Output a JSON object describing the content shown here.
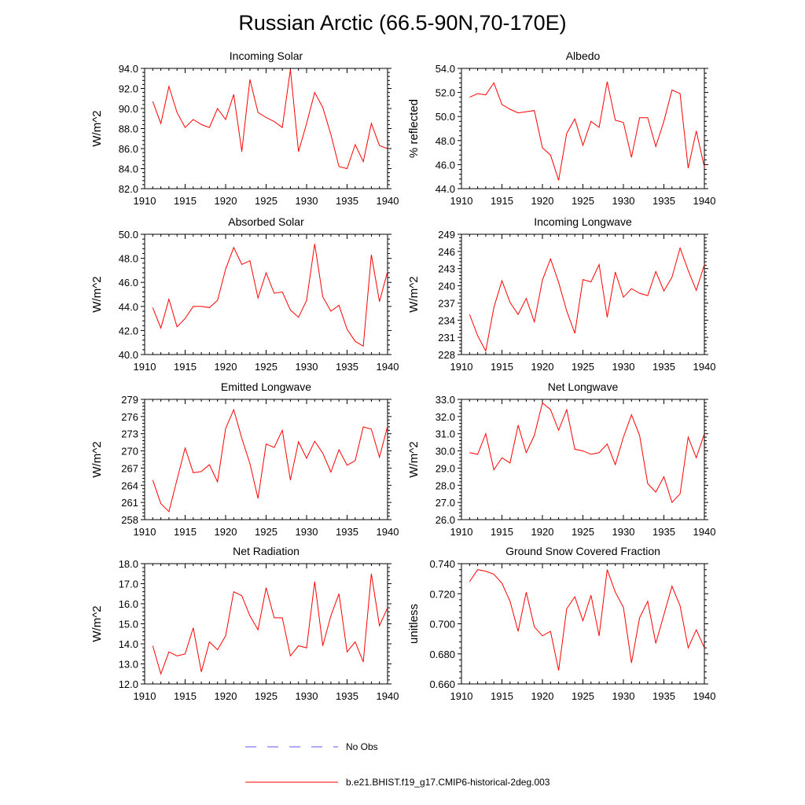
{
  "title": "Russian Arctic (66.5-90N,70-170E)",
  "legend": {
    "position": "bottom",
    "entries": [
      {
        "label": "No Obs",
        "color": "#5a5aff",
        "style": "dashed"
      },
      {
        "label": "b.e21.BHIST.f19_g17.CMIP6-historical-2deg.003",
        "color": "#ff0000",
        "style": "solid"
      }
    ]
  },
  "chart_data": [
    {
      "type": "line",
      "title": "Incoming Solar",
      "ylabel": "W/m^2",
      "xlabel": "",
      "xlim": [
        1910,
        1940
      ],
      "ylim": [
        82.0,
        94.0
      ],
      "xticks": [
        1910,
        1915,
        1920,
        1925,
        1930,
        1935,
        1940
      ],
      "yticks": [
        82.0,
        84.0,
        86.0,
        88.0,
        90.0,
        92.0,
        94.0
      ],
      "decimals": 1,
      "series": [
        {
          "color": "#ff0000",
          "x": [
            1911,
            1912,
            1913,
            1914,
            1915,
            1916,
            1917,
            1918,
            1919,
            1920,
            1921,
            1922,
            1923,
            1924,
            1925,
            1926,
            1927,
            1928,
            1929,
            1930,
            1931,
            1932,
            1933,
            1934,
            1935,
            1936,
            1937,
            1938,
            1939,
            1940
          ],
          "y": [
            90.7,
            88.5,
            92.2,
            89.6,
            88.1,
            88.9,
            88.4,
            88.1,
            90.0,
            88.9,
            91.4,
            85.7,
            92.9,
            89.6,
            89.1,
            88.7,
            88.1,
            93.9,
            85.7,
            88.5,
            91.6,
            90.1,
            87.4,
            84.2,
            84.0,
            86.4,
            84.7,
            88.5,
            86.3,
            86.0
          ]
        }
      ]
    },
    {
      "type": "line",
      "title": "Albedo",
      "ylabel": "% reflected",
      "xlabel": "",
      "xlim": [
        1910,
        1940
      ],
      "ylim": [
        44.0,
        54.0
      ],
      "xticks": [
        1910,
        1915,
        1920,
        1925,
        1930,
        1935,
        1940
      ],
      "yticks": [
        44.0,
        46.0,
        48.0,
        50.0,
        52.0,
        54.0
      ],
      "decimals": 1,
      "series": [
        {
          "color": "#ff0000",
          "x": [
            1911,
            1912,
            1913,
            1914,
            1915,
            1916,
            1917,
            1918,
            1919,
            1920,
            1921,
            1922,
            1923,
            1924,
            1925,
            1926,
            1927,
            1928,
            1929,
            1930,
            1931,
            1932,
            1933,
            1934,
            1935,
            1936,
            1937,
            1938,
            1939,
            1940
          ],
          "y": [
            51.6,
            51.9,
            51.8,
            52.8,
            51.0,
            50.6,
            50.3,
            50.4,
            50.5,
            47.4,
            46.8,
            44.7,
            48.6,
            49.8,
            47.6,
            49.6,
            49.1,
            52.9,
            49.7,
            49.5,
            46.6,
            49.9,
            49.9,
            47.5,
            49.6,
            52.2,
            51.9,
            45.7,
            48.8,
            45.8
          ]
        }
      ]
    },
    {
      "type": "line",
      "title": "Absorbed Solar",
      "ylabel": "W/m^2",
      "xlabel": "",
      "xlim": [
        1910,
        1940
      ],
      "ylim": [
        40.0,
        50.0
      ],
      "xticks": [
        1910,
        1915,
        1920,
        1925,
        1930,
        1935,
        1940
      ],
      "yticks": [
        40.0,
        42.0,
        44.0,
        46.0,
        48.0,
        50.0
      ],
      "decimals": 1,
      "series": [
        {
          "color": "#ff0000",
          "x": [
            1911,
            1912,
            1913,
            1914,
            1915,
            1916,
            1917,
            1918,
            1919,
            1920,
            1921,
            1922,
            1923,
            1924,
            1925,
            1926,
            1927,
            1928,
            1929,
            1930,
            1931,
            1932,
            1933,
            1934,
            1935,
            1936,
            1937,
            1938,
            1939,
            1940
          ],
          "y": [
            43.9,
            42.2,
            44.6,
            42.3,
            43.0,
            44.0,
            44.0,
            43.9,
            44.5,
            47.1,
            48.9,
            47.5,
            47.8,
            44.7,
            46.8,
            45.1,
            45.2,
            43.7,
            43.1,
            44.5,
            49.2,
            44.8,
            43.6,
            44.1,
            42.1,
            41.1,
            40.7,
            48.3,
            44.4,
            46.9
          ]
        }
      ]
    },
    {
      "type": "line",
      "title": "Incoming Longwave",
      "ylabel": "W/m^2",
      "xlabel": "",
      "xlim": [
        1910,
        1940
      ],
      "ylim": [
        228,
        249
      ],
      "xticks": [
        1910,
        1915,
        1920,
        1925,
        1930,
        1935,
        1940
      ],
      "yticks": [
        228,
        231,
        234,
        237,
        240,
        243,
        246,
        249
      ],
      "decimals": 0,
      "series": [
        {
          "color": "#ff0000",
          "x": [
            1911,
            1912,
            1913,
            1914,
            1915,
            1916,
            1917,
            1918,
            1919,
            1920,
            1921,
            1922,
            1923,
            1924,
            1925,
            1926,
            1927,
            1928,
            1929,
            1930,
            1931,
            1932,
            1933,
            1934,
            1935,
            1936,
            1937,
            1938,
            1939,
            1940
          ],
          "y": [
            235.0,
            231.3,
            228.6,
            236.2,
            240.9,
            237.1,
            235.0,
            237.8,
            233.7,
            241.0,
            244.7,
            240.6,
            235.6,
            231.7,
            241.1,
            240.7,
            243.7,
            234.5,
            242.4,
            238.0,
            239.5,
            238.7,
            238.3,
            242.5,
            239.1,
            241.5,
            246.6,
            242.7,
            239.2,
            243.7
          ]
        }
      ]
    },
    {
      "type": "line",
      "title": "Emitted Longwave",
      "ylabel": "W/m^2",
      "xlabel": "",
      "xlim": [
        1910,
        1940
      ],
      "ylim": [
        258,
        279
      ],
      "xticks": [
        1910,
        1915,
        1920,
        1925,
        1930,
        1935,
        1940
      ],
      "yticks": [
        258,
        261,
        264,
        267,
        270,
        273,
        276,
        279
      ],
      "decimals": 0,
      "series": [
        {
          "color": "#ff0000",
          "x": [
            1911,
            1912,
            1913,
            1914,
            1915,
            1916,
            1917,
            1918,
            1919,
            1920,
            1921,
            1922,
            1923,
            1924,
            1925,
            1926,
            1927,
            1928,
            1929,
            1930,
            1931,
            1932,
            1933,
            1934,
            1935,
            1936,
            1937,
            1938,
            1939,
            1940
          ],
          "y": [
            264.9,
            260.8,
            259.4,
            265.0,
            270.5,
            266.2,
            266.4,
            267.6,
            264.6,
            273.9,
            277.2,
            272.2,
            267.8,
            261.7,
            271.2,
            270.6,
            273.6,
            264.9,
            271.6,
            268.7,
            271.7,
            269.6,
            266.3,
            270.2,
            267.5,
            268.3,
            274.2,
            273.8,
            268.9,
            274.3
          ]
        }
      ]
    },
    {
      "type": "line",
      "title": "Net Longwave",
      "ylabel": "W/m^2",
      "xlabel": "",
      "xlim": [
        1910,
        1940
      ],
      "ylim": [
        26.0,
        33.0
      ],
      "xticks": [
        1910,
        1915,
        1920,
        1925,
        1930,
        1935,
        1940
      ],
      "yticks": [
        26.0,
        27.0,
        28.0,
        29.0,
        30.0,
        31.0,
        32.0,
        33.0
      ],
      "decimals": 1,
      "series": [
        {
          "color": "#ff0000",
          "x": [
            1911,
            1912,
            1913,
            1914,
            1915,
            1916,
            1917,
            1918,
            1919,
            1920,
            1921,
            1922,
            1923,
            1924,
            1925,
            1926,
            1927,
            1928,
            1929,
            1930,
            1931,
            1932,
            1933,
            1934,
            1935,
            1936,
            1937,
            1938,
            1939,
            1940
          ],
          "y": [
            29.9,
            29.8,
            31.0,
            28.9,
            29.6,
            29.3,
            31.5,
            29.9,
            30.9,
            32.8,
            32.4,
            31.2,
            32.4,
            30.1,
            30.0,
            29.8,
            29.9,
            30.4,
            29.2,
            30.8,
            32.1,
            30.9,
            28.1,
            27.6,
            28.5,
            27.0,
            27.5,
            30.8,
            29.6,
            31.0
          ]
        }
      ]
    },
    {
      "type": "line",
      "title": "Net Radiation",
      "ylabel": "W/m^2",
      "xlabel": "",
      "xlim": [
        1910,
        1940
      ],
      "ylim": [
        12.0,
        18.0
      ],
      "xticks": [
        1910,
        1915,
        1920,
        1925,
        1930,
        1935,
        1940
      ],
      "yticks": [
        12.0,
        13.0,
        14.0,
        15.0,
        16.0,
        17.0,
        18.0
      ],
      "decimals": 1,
      "series": [
        {
          "color": "#ff0000",
          "x": [
            1911,
            1912,
            1913,
            1914,
            1915,
            1916,
            1917,
            1918,
            1919,
            1920,
            1921,
            1922,
            1923,
            1924,
            1925,
            1926,
            1927,
            1928,
            1929,
            1930,
            1931,
            1932,
            1933,
            1934,
            1935,
            1936,
            1937,
            1938,
            1939,
            1940
          ],
          "y": [
            13.9,
            12.5,
            13.6,
            13.4,
            13.5,
            14.8,
            12.6,
            14.1,
            13.7,
            14.4,
            16.6,
            16.4,
            15.4,
            14.7,
            16.8,
            15.3,
            15.3,
            13.4,
            13.9,
            13.8,
            17.1,
            13.9,
            15.4,
            16.5,
            13.6,
            14.1,
            13.1,
            17.5,
            14.9,
            15.8
          ]
        }
      ]
    },
    {
      "type": "line",
      "title": "Ground Snow Covered Fraction",
      "ylabel": "unitless",
      "xlabel": "",
      "xlim": [
        1910,
        1940
      ],
      "ylim": [
        0.66,
        0.74
      ],
      "xticks": [
        1910,
        1915,
        1920,
        1925,
        1930,
        1935,
        1940
      ],
      "yticks": [
        0.66,
        0.68,
        0.7,
        0.72,
        0.74
      ],
      "decimals": 3,
      "series": [
        {
          "color": "#ff0000",
          "x": [
            1911,
            1912,
            1913,
            1914,
            1915,
            1916,
            1917,
            1918,
            1919,
            1920,
            1921,
            1922,
            1923,
            1924,
            1925,
            1926,
            1927,
            1928,
            1929,
            1930,
            1931,
            1932,
            1933,
            1934,
            1935,
            1936,
            1937,
            1938,
            1939,
            1940
          ],
          "y": [
            0.728,
            0.736,
            0.735,
            0.733,
            0.727,
            0.715,
            0.695,
            0.721,
            0.698,
            0.692,
            0.695,
            0.669,
            0.71,
            0.718,
            0.702,
            0.719,
            0.692,
            0.736,
            0.721,
            0.711,
            0.674,
            0.704,
            0.715,
            0.687,
            0.706,
            0.725,
            0.712,
            0.684,
            0.696,
            0.684
          ]
        }
      ]
    }
  ]
}
